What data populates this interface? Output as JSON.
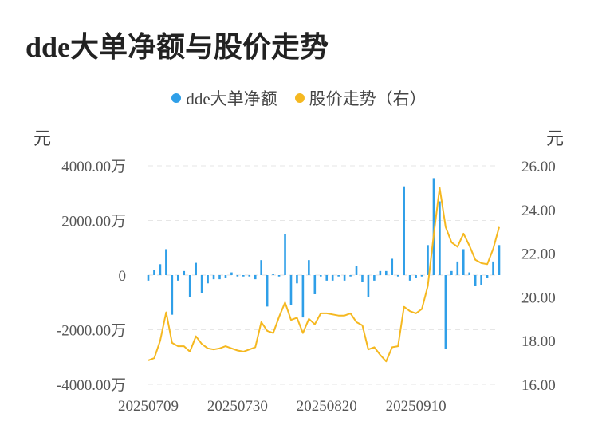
{
  "chart_data": {
    "type": "bar+line",
    "title": "dde大单净额与股价走势",
    "legend": {
      "placement": "top-center",
      "items": [
        {
          "label": "dde大单净额",
          "color": "#2f9fe8"
        },
        {
          "label": "股价走势（右）",
          "color": "#f5b820"
        }
      ]
    },
    "y_left": {
      "label": "元",
      "ylim": [
        -4000,
        4000
      ],
      "ticks": [
        {
          "value": 4000,
          "label": "4000.00万"
        },
        {
          "value": 2000,
          "label": "2000.00万"
        },
        {
          "value": 0,
          "label": "0"
        },
        {
          "value": -2000,
          "label": "-2000.00万"
        },
        {
          "value": -4000,
          "label": "-4000.00万"
        }
      ]
    },
    "y_right": {
      "label": "元",
      "ylim": [
        16,
        26
      ],
      "ticks": [
        {
          "value": 26,
          "label": "26.00"
        },
        {
          "value": 24,
          "label": "24.00"
        },
        {
          "value": 22,
          "label": "22.00"
        },
        {
          "value": 20,
          "label": "20.00"
        },
        {
          "value": 18,
          "label": "18.00"
        },
        {
          "value": 16,
          "label": "16.00"
        }
      ]
    },
    "x_ticks": [
      {
        "index": 0,
        "label": "20250709"
      },
      {
        "index": 15,
        "label": "20250730"
      },
      {
        "index": 30,
        "label": "20250820"
      },
      {
        "index": 45,
        "label": "20250910"
      }
    ],
    "grid": true,
    "series": [
      {
        "name": "dde大单净额",
        "type": "bar",
        "axis": "left",
        "color": "#2f9fe8",
        "values": [
          -200,
          200,
          400,
          950,
          -1450,
          -200,
          150,
          -800,
          450,
          -650,
          -300,
          -150,
          -150,
          -100,
          100,
          -50,
          -50,
          -50,
          -150,
          550,
          -1150,
          50,
          -50,
          1500,
          -1100,
          -300,
          -1550,
          550,
          -700,
          -50,
          -200,
          -200,
          -50,
          -200,
          -50,
          350,
          -250,
          -800,
          -200,
          150,
          150,
          600,
          -50,
          3250,
          -200,
          -100,
          -50,
          1100,
          3550,
          2700,
          -2700,
          150,
          500,
          950,
          100,
          -400,
          -350,
          -100,
          500,
          1100
        ]
      },
      {
        "name": "股价走势（右）",
        "type": "line",
        "axis": "right",
        "color": "#f5b820",
        "values": [
          17.1,
          17.2,
          18.0,
          19.3,
          17.9,
          17.75,
          17.75,
          17.5,
          18.2,
          17.85,
          17.65,
          17.6,
          17.65,
          17.75,
          17.65,
          17.55,
          17.5,
          17.6,
          17.7,
          18.85,
          18.45,
          18.35,
          19.1,
          19.75,
          18.95,
          19.05,
          18.35,
          19.0,
          18.75,
          19.25,
          19.25,
          19.2,
          19.15,
          19.15,
          19.25,
          18.85,
          18.7,
          17.6,
          17.7,
          17.35,
          17.05,
          17.7,
          17.75,
          19.55,
          19.35,
          19.25,
          19.45,
          20.5,
          22.85,
          25.0,
          23.2,
          22.5,
          22.3,
          22.9,
          22.35,
          21.7,
          21.55,
          21.5,
          22.2,
          23.2
        ]
      }
    ]
  }
}
